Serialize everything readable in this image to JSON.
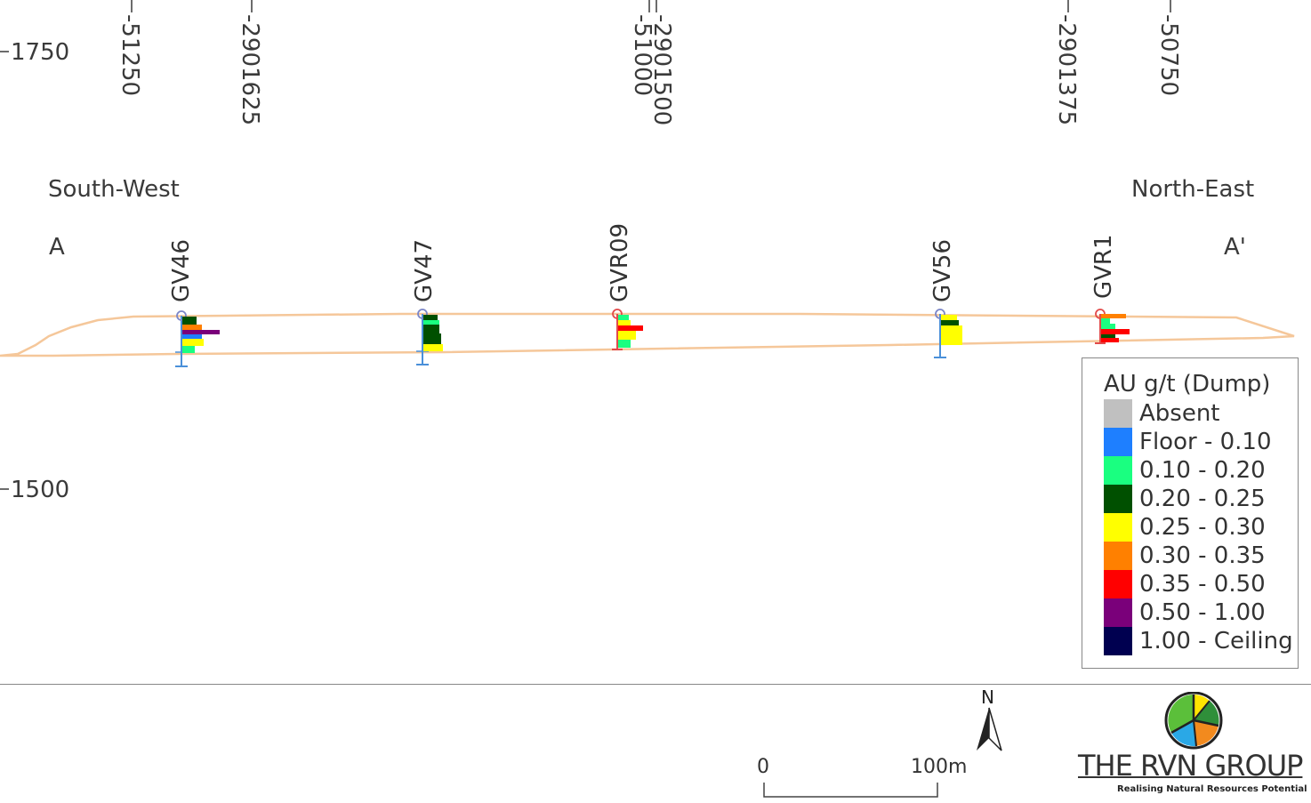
{
  "grid": {
    "elevation_labels": [
      "1750",
      "1500"
    ],
    "easting_labels": [
      "-51250",
      "-51000",
      "-50750"
    ],
    "northing_labels": [
      "-2901625",
      "-2901500",
      "-2901375"
    ]
  },
  "directions": {
    "south_west": "South-West",
    "north_east": "North-East",
    "start": "A",
    "end": "A'"
  },
  "holes": [
    {
      "id": "GV46",
      "collar_color": "#7b86c8"
    },
    {
      "id": "GV47",
      "collar_color": "#7b86c8"
    },
    {
      "id": "GVR09",
      "collar_color": "#e24a4a"
    },
    {
      "id": "GV56",
      "collar_color": "#7b86c8"
    },
    {
      "id": "GVR1",
      "collar_color": "#e24a4a"
    }
  ],
  "legend": {
    "title": "AU g/t (Dump)",
    "items": [
      {
        "label": "Absent",
        "color": "#c0c0c0"
      },
      {
        "label": "Floor - 0.10",
        "color": "#1e7fff"
      },
      {
        "label": "0.10 - 0.20",
        "color": "#1aff80"
      },
      {
        "label": "0.20 - 0.25",
        "color": "#005000"
      },
      {
        "label": "0.25 - 0.30",
        "color": "#ffff00"
      },
      {
        "label": "0.30 - 0.35",
        "color": "#ff8000"
      },
      {
        "label": "0.35 - 0.50",
        "color": "#ff0000"
      },
      {
        "label": "0.50 - 1.00",
        "color": "#7a007a"
      },
      {
        "label": "1.00 - Ceiling",
        "color": "#000050"
      }
    ]
  },
  "scale": {
    "start": "0",
    "end": "100m"
  },
  "north_label": "N",
  "logo": {
    "name": "THE RVN GROUP",
    "tagline": "Realising Natural Resources Potential"
  },
  "colors": {
    "dump_outline": "#f5c79a",
    "trace": "#4a90d9"
  }
}
